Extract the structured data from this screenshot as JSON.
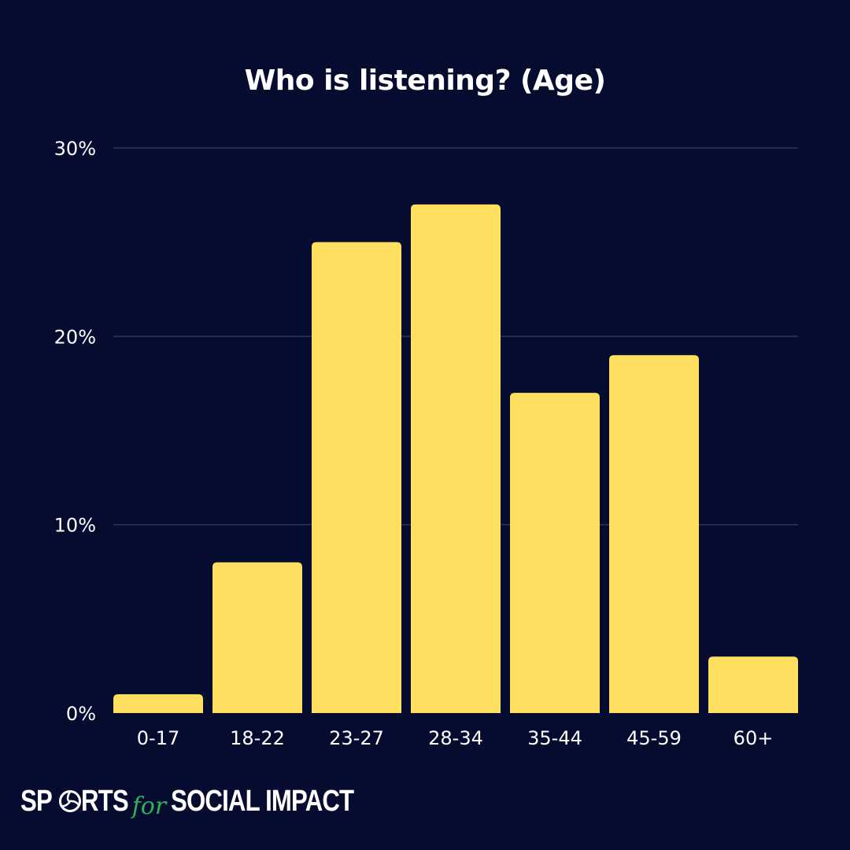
{
  "chart_data": {
    "type": "bar",
    "title": "Who is listening? (Age)",
    "categories": [
      "0-17",
      "18-22",
      "23-27",
      "28-34",
      "35-44",
      "45-59",
      "60+"
    ],
    "values": [
      1,
      8,
      25,
      27,
      17,
      19,
      3
    ],
    "unit": "%",
    "ylim": [
      0,
      30
    ],
    "yticks": [
      0,
      10,
      20,
      30
    ],
    "ytick_labels": [
      "0%",
      "10%",
      "20%",
      "30%"
    ],
    "grid": true,
    "xlabel": "",
    "ylabel": "",
    "colors": {
      "background": "#060b30",
      "bar": "#fedf5f",
      "grid": "#2e3558",
      "text": "#ffffff"
    }
  },
  "logo": {
    "part1a": "SP",
    "part1b": "RTS",
    "connector": "for",
    "part2": "SOCIAL IMPACT",
    "icon": "volleyball-icon"
  }
}
